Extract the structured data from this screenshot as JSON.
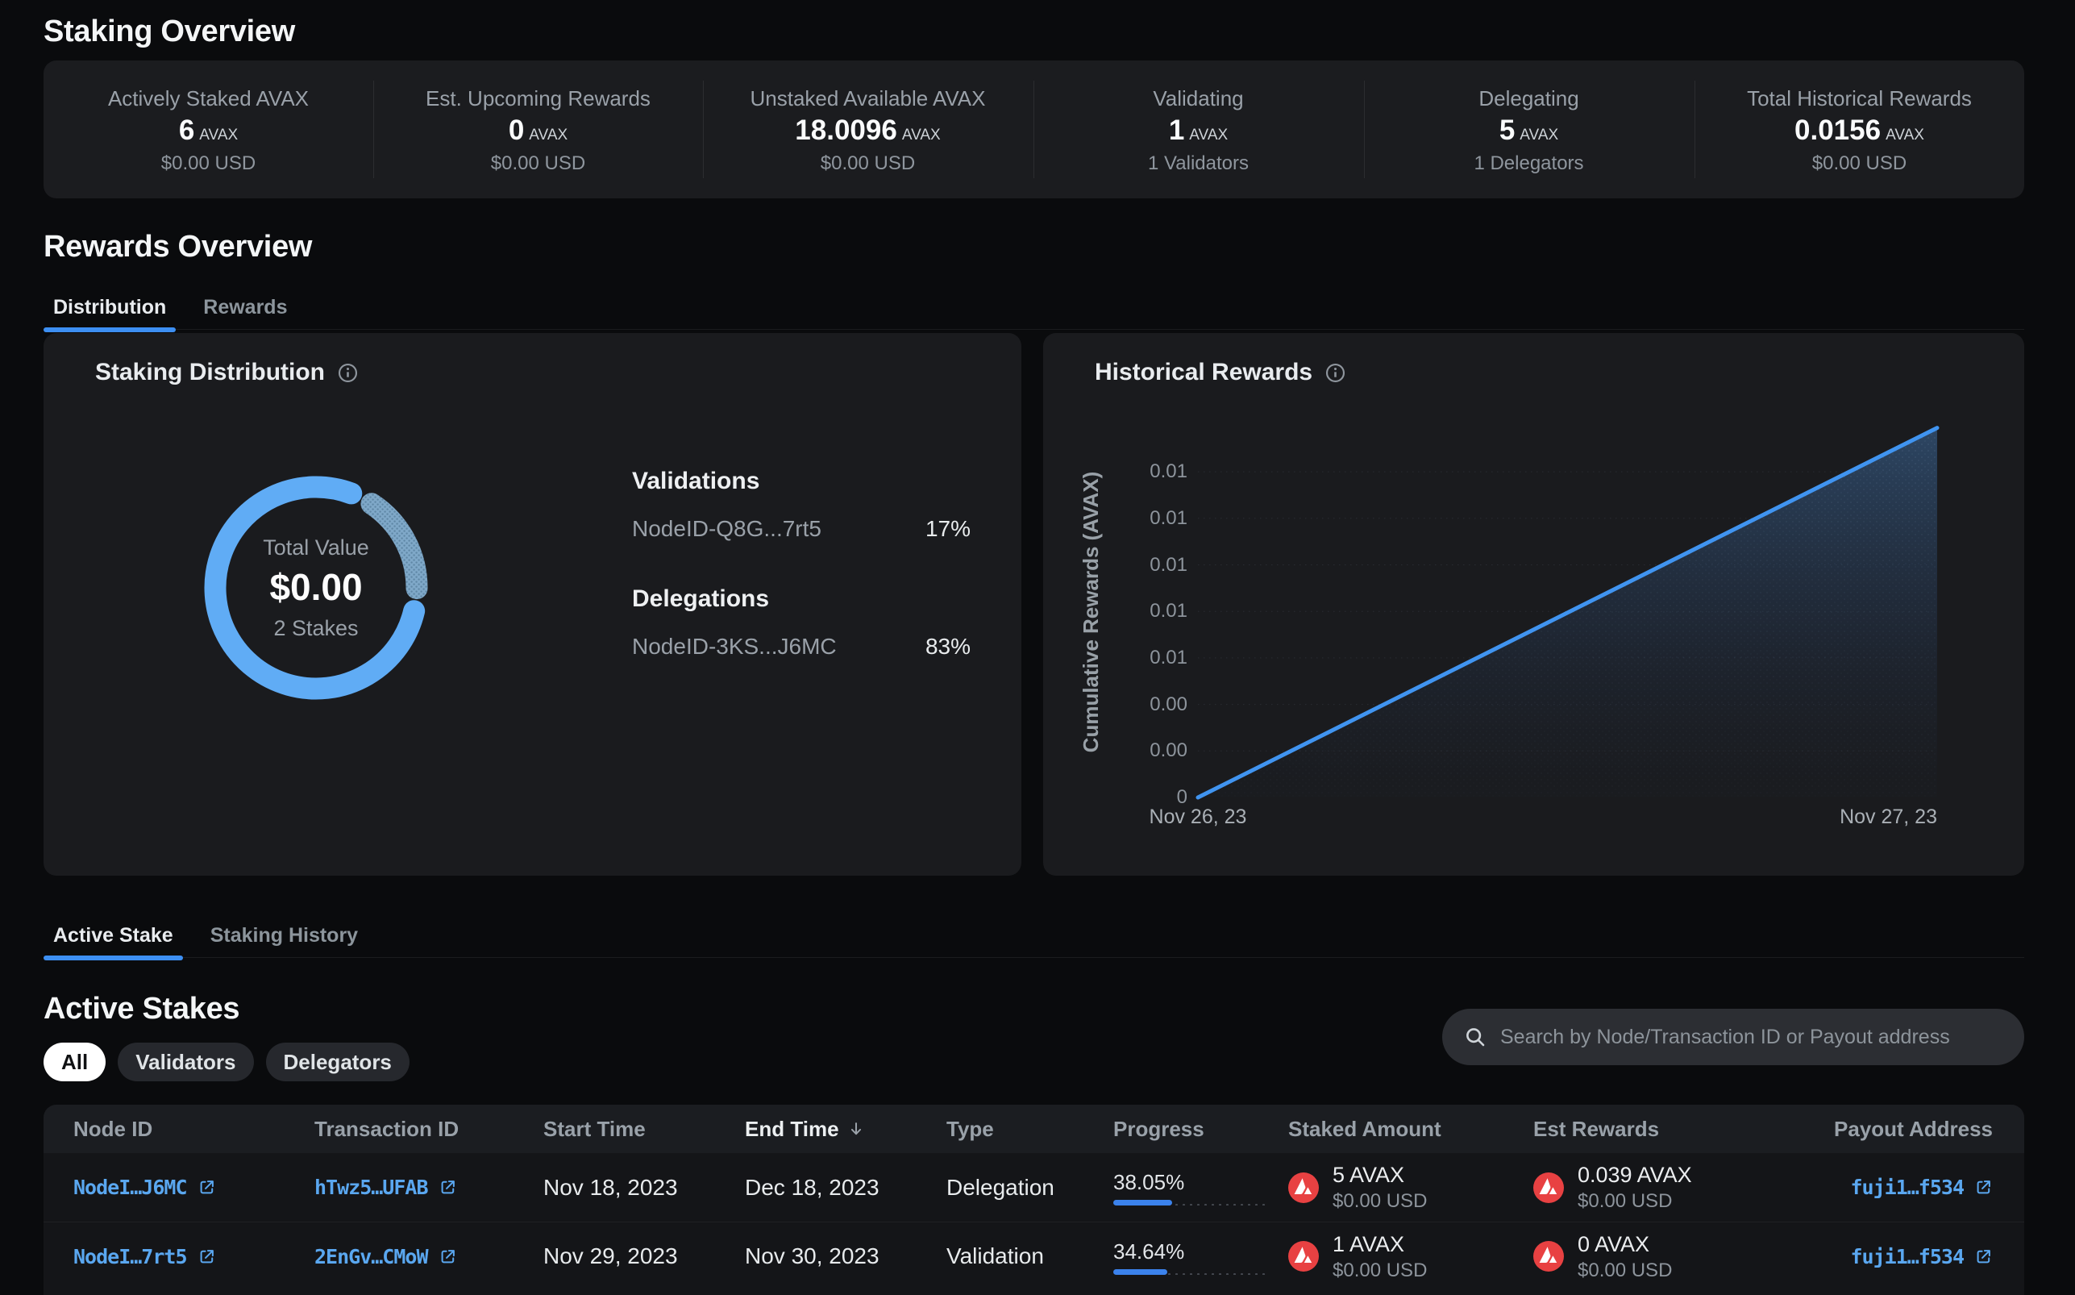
{
  "staking_overview": {
    "title": "Staking Overview"
  },
  "stats": [
    {
      "label": "Actively Staked AVAX",
      "value": "6",
      "unit": "AVAX",
      "sub": "$0.00 USD"
    },
    {
      "label": "Est. Upcoming Rewards",
      "value": "0",
      "unit": "AVAX",
      "sub": "$0.00 USD"
    },
    {
      "label": "Unstaked Available AVAX",
      "value": "18.0096",
      "unit": "AVAX",
      "sub": "$0.00 USD"
    },
    {
      "label": "Validating",
      "value": "1",
      "unit": "AVAX",
      "sub": "1 Validators"
    },
    {
      "label": "Delegating",
      "value": "5",
      "unit": "AVAX",
      "sub": "1 Delegators"
    },
    {
      "label": "Total Historical Rewards",
      "value": "0.0156",
      "unit": "AVAX",
      "sub": "$0.00 USD"
    }
  ],
  "rewards_overview": {
    "title": "Rewards Overview",
    "tabs": [
      {
        "label": "Distribution",
        "active": true
      },
      {
        "label": "Rewards",
        "active": false
      }
    ]
  },
  "distribution_card": {
    "title": "Staking Distribution",
    "donut_center": {
      "label": "Total Value",
      "value": "$0.00",
      "sub": "2 Stakes"
    },
    "validations": {
      "heading": "Validations",
      "node": "NodeID-Q8G...7rt5",
      "pct": "17%"
    },
    "delegations": {
      "heading": "Delegations",
      "node": "NodeID-3KS...J6MC",
      "pct": "83%"
    }
  },
  "historical_card": {
    "title": "Historical Rewards",
    "ylabel": "Cumulative Rewards (AVAX)",
    "yticks": [
      "0",
      "0.00",
      "0.00",
      "0.01",
      "0.01",
      "0.01",
      "0.01",
      "0.01"
    ],
    "xtick_left": "Nov 26, 23",
    "xtick_right": "Nov 27, 23"
  },
  "chart_data": [
    {
      "type": "pie",
      "title": "Staking Distribution",
      "labels": [
        "Validations NodeID-Q8G...7rt5",
        "Delegations NodeID-3KS...J6MC"
      ],
      "values": [
        17,
        83
      ],
      "center_label": "Total Value",
      "center_value": "$0.00",
      "center_sub": "2 Stakes",
      "colors": [
        "#7ea6c6",
        "#60acf5"
      ]
    },
    {
      "type": "area",
      "title": "Historical Rewards",
      "xlabel": "",
      "ylabel": "Cumulative Rewards (AVAX)",
      "x": [
        "Nov 26, 23",
        "Nov 27, 23"
      ],
      "series": [
        {
          "name": "Cumulative Rewards (AVAX)",
          "values": [
            0,
            0.0156
          ]
        }
      ],
      "ylim": [
        0,
        0.0162
      ],
      "ytick_values": [
        0,
        0.002,
        0.004,
        0.006,
        0.008,
        0.01,
        0.012,
        0.014
      ],
      "ytick_labels": [
        "0",
        "0.00",
        "0.00",
        "0.01",
        "0.01",
        "0.01",
        "0.01",
        "0.01"
      ],
      "grid": true,
      "legend_position": "none"
    }
  ],
  "stakes_section": {
    "tabs": [
      {
        "label": "Active Stake",
        "active": true
      },
      {
        "label": "Staking History",
        "active": false
      }
    ],
    "title": "Active Stakes",
    "filters": [
      {
        "label": "All",
        "active": true
      },
      {
        "label": "Validators",
        "active": false
      },
      {
        "label": "Delegators",
        "active": false
      }
    ],
    "search_placeholder": "Search by Node/Transaction ID or Payout address"
  },
  "table": {
    "columns": [
      "Node ID",
      "Transaction ID",
      "Start Time",
      "End Time",
      "Type",
      "Progress",
      "Staked Amount",
      "Est Rewards",
      "Payout Address"
    ],
    "sorted_column": "End Time",
    "sort_direction": "desc",
    "rows": [
      {
        "node_id": "NodeI…J6MC",
        "tx_id": "hTwz5…UFAB",
        "start": "Nov 18, 2023",
        "end": "Dec 18, 2023",
        "type": "Delegation",
        "progress_label": "38.05%",
        "progress_pct": 38.05,
        "staked": "5 AVAX",
        "staked_usd": "$0.00 USD",
        "rewards": "0.039 AVAX",
        "rewards_usd": "$0.00 USD",
        "payout": "fuji1…f534"
      },
      {
        "node_id": "NodeI…7rt5",
        "tx_id": "2EnGv…CMoW",
        "start": "Nov 29, 2023",
        "end": "Nov 30, 2023",
        "type": "Validation",
        "progress_label": "34.64%",
        "progress_pct": 34.64,
        "staked": "1 AVAX",
        "staked_usd": "$0.00 USD",
        "rewards": "0 AVAX",
        "rewards_usd": "$0.00 USD",
        "payout": "fuji1…f534"
      }
    ]
  },
  "colors": {
    "page_bg": "#0a0b0d",
    "card_bg": "#1a1b1e",
    "accent_blue": "#3d8ff2",
    "donut_blue": "#60acf5",
    "donut_muted": "#7ea6c6",
    "link_blue": "#5aa7f0",
    "avax_red": "#e84142",
    "progress_blue": "#3b82ec"
  }
}
